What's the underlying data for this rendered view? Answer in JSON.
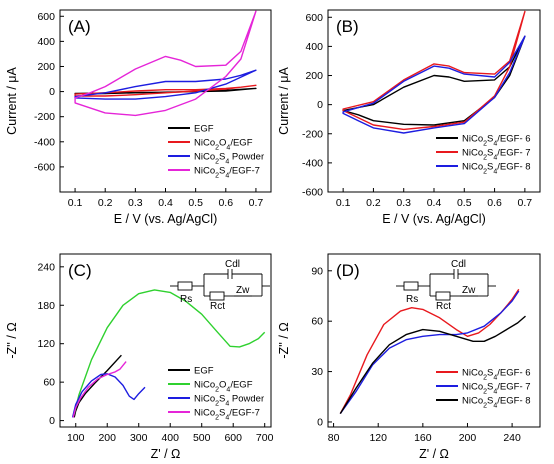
{
  "chart_data": [
    {
      "panel": "(A)",
      "type": "line",
      "xlabel": "E / V (vs. Ag/AgCl)",
      "ylabel": "Current / μA",
      "xlim": [
        0.05,
        0.75
      ],
      "ylim": [
        -800,
        650
      ],
      "xticks": [
        0.1,
        0.2,
        0.3,
        0.4,
        0.5,
        0.6,
        0.7
      ],
      "yticks": [
        -600,
        -400,
        -200,
        0,
        200,
        400,
        600
      ],
      "legend_position": "bottom-right",
      "series": [
        {
          "name": "EGF",
          "color": "#000000",
          "anodic": [
            [
              0.1,
              -15
            ],
            [
              0.2,
              -12
            ],
            [
              0.3,
              -8
            ],
            [
              0.4,
              -5
            ],
            [
              0.5,
              0
            ],
            [
              0.6,
              5
            ],
            [
              0.65,
              15
            ],
            [
              0.7,
              25
            ]
          ],
          "cathodic": [
            [
              0.7,
              25
            ],
            [
              0.6,
              10
            ],
            [
              0.5,
              0
            ],
            [
              0.4,
              -5
            ],
            [
              0.3,
              -10
            ],
            [
              0.2,
              -15
            ],
            [
              0.1,
              -18
            ]
          ]
        },
        {
          "name": "NiCo2O4/EGF",
          "color": "#e8191e",
          "anodic": [
            [
              0.1,
              -20
            ],
            [
              0.2,
              -10
            ],
            [
              0.3,
              5
            ],
            [
              0.4,
              15
            ],
            [
              0.5,
              15
            ],
            [
              0.6,
              25
            ],
            [
              0.65,
              35
            ],
            [
              0.7,
              50
            ]
          ],
          "cathodic": [
            [
              0.7,
              50
            ],
            [
              0.6,
              20
            ],
            [
              0.5,
              5
            ],
            [
              0.4,
              -10
            ],
            [
              0.3,
              -25
            ],
            [
              0.2,
              -35
            ],
            [
              0.1,
              -35
            ]
          ]
        },
        {
          "name": "NiCo2S4 Powder",
          "color": "#1d1de0",
          "anodic": [
            [
              0.1,
              -40
            ],
            [
              0.2,
              -10
            ],
            [
              0.3,
              40
            ],
            [
              0.4,
              80
            ],
            [
              0.5,
              80
            ],
            [
              0.6,
              100
            ],
            [
              0.65,
              130
            ],
            [
              0.7,
              170
            ]
          ],
          "cathodic": [
            [
              0.7,
              170
            ],
            [
              0.6,
              60
            ],
            [
              0.5,
              -10
            ],
            [
              0.4,
              -40
            ],
            [
              0.3,
              -60
            ],
            [
              0.2,
              -60
            ],
            [
              0.1,
              -50
            ]
          ]
        },
        {
          "name": "NiCo2S4/EGF-7",
          "color": "#e525d8",
          "anodic": [
            [
              0.1,
              -50
            ],
            [
              0.15,
              -10
            ],
            [
              0.2,
              40
            ],
            [
              0.3,
              180
            ],
            [
              0.4,
              280
            ],
            [
              0.45,
              250
            ],
            [
              0.5,
              200
            ],
            [
              0.6,
              210
            ],
            [
              0.65,
              320
            ],
            [
              0.7,
              640
            ]
          ],
          "cathodic": [
            [
              0.7,
              640
            ],
            [
              0.65,
              260
            ],
            [
              0.6,
              120
            ],
            [
              0.5,
              -60
            ],
            [
              0.4,
              -150
            ],
            [
              0.3,
              -190
            ],
            [
              0.2,
              -170
            ],
            [
              0.15,
              -130
            ],
            [
              0.1,
              -90
            ]
          ]
        }
      ]
    },
    {
      "panel": "(B)",
      "type": "line",
      "xlabel": "E / V (vs. Ag/AgCl)",
      "ylabel": "Current / μA",
      "xlim": [
        0.05,
        0.75
      ],
      "ylim": [
        -600,
        650
      ],
      "xticks": [
        0.1,
        0.2,
        0.3,
        0.4,
        0.5,
        0.6,
        0.7
      ],
      "yticks": [
        -600,
        -400,
        -200,
        0,
        200,
        400,
        600
      ],
      "legend_position": "bottom-right",
      "series": [
        {
          "name": "NiCo2S4/EGF- 6",
          "color": "#000000",
          "anodic": [
            [
              0.1,
              -40
            ],
            [
              0.2,
              0
            ],
            [
              0.3,
              120
            ],
            [
              0.4,
              200
            ],
            [
              0.45,
              190
            ],
            [
              0.5,
              160
            ],
            [
              0.6,
              170
            ],
            [
              0.65,
              260
            ],
            [
              0.7,
              470
            ]
          ],
          "cathodic": [
            [
              0.7,
              470
            ],
            [
              0.65,
              200
            ],
            [
              0.6,
              50
            ],
            [
              0.5,
              -110
            ],
            [
              0.4,
              -140
            ],
            [
              0.3,
              -135
            ],
            [
              0.2,
              -110
            ],
            [
              0.15,
              -70
            ],
            [
              0.1,
              -40
            ]
          ]
        },
        {
          "name": "NiCo2S4/EGF- 7",
          "color": "#e8191e",
          "anodic": [
            [
              0.1,
              -30
            ],
            [
              0.2,
              20
            ],
            [
              0.3,
              170
            ],
            [
              0.4,
              280
            ],
            [
              0.45,
              265
            ],
            [
              0.5,
              220
            ],
            [
              0.6,
              210
            ],
            [
              0.65,
              300
            ],
            [
              0.7,
              640
            ]
          ],
          "cathodic": [
            [
              0.7,
              640
            ],
            [
              0.65,
              260
            ],
            [
              0.6,
              60
            ],
            [
              0.5,
              -120
            ],
            [
              0.4,
              -150
            ],
            [
              0.3,
              -170
            ],
            [
              0.2,
              -140
            ],
            [
              0.15,
              -90
            ],
            [
              0.1,
              -40
            ]
          ]
        },
        {
          "name": "NiCo2S4/EGF- 8",
          "color": "#1d1de0",
          "anodic": [
            [
              0.1,
              -50
            ],
            [
              0.2,
              10
            ],
            [
              0.3,
              160
            ],
            [
              0.4,
              265
            ],
            [
              0.45,
              250
            ],
            [
              0.5,
              210
            ],
            [
              0.6,
              190
            ],
            [
              0.65,
              290
            ],
            [
              0.7,
              470
            ]
          ],
          "cathodic": [
            [
              0.7,
              470
            ],
            [
              0.65,
              220
            ],
            [
              0.6,
              50
            ],
            [
              0.5,
              -130
            ],
            [
              0.4,
              -160
            ],
            [
              0.3,
              -195
            ],
            [
              0.2,
              -160
            ],
            [
              0.15,
              -110
            ],
            [
              0.1,
              -60
            ]
          ]
        }
      ]
    },
    {
      "panel": "(C)",
      "type": "line",
      "xlabel": "Z' / Ω",
      "ylabel": "-Z'' / Ω",
      "xlim": [
        50,
        720
      ],
      "ylim": [
        -10,
        260
      ],
      "xticks": [
        100,
        200,
        300,
        400,
        500,
        600,
        700
      ],
      "yticks": [
        0,
        60,
        120,
        180,
        240
      ],
      "legend_position": "bottom-right",
      "circuit": {
        "rs": "Rs",
        "rct": "Rct",
        "cdl": "Cdl",
        "zw": "Zw"
      },
      "series": [
        {
          "name": "EGF",
          "color": "#000000",
          "points": [
            [
              95,
              5
            ],
            [
              100,
              15
            ],
            [
              110,
              28
            ],
            [
              130,
              42
            ],
            [
              160,
              58
            ],
            [
              200,
              78
            ],
            [
              245,
              102
            ]
          ]
        },
        {
          "name": "NiCo2O4/EGF",
          "color": "#2fd12f",
          "points": [
            [
              95,
              10
            ],
            [
              110,
              40
            ],
            [
              150,
              95
            ],
            [
              200,
              145
            ],
            [
              250,
              180
            ],
            [
              300,
              198
            ],
            [
              350,
              204
            ],
            [
              400,
              200
            ],
            [
              450,
              186
            ],
            [
              500,
              166
            ],
            [
              550,
              138
            ],
            [
              590,
              116
            ],
            [
              620,
              115
            ],
            [
              650,
              120
            ],
            [
              680,
              128
            ],
            [
              700,
              138
            ]
          ]
        },
        {
          "name": "NiCo2S4 Powder",
          "color": "#1d1de0",
          "points": [
            [
              90,
              5
            ],
            [
              100,
              25
            ],
            [
              120,
              45
            ],
            [
              150,
              62
            ],
            [
              180,
              72
            ],
            [
              200,
              73
            ],
            [
              225,
              68
            ],
            [
              250,
              55
            ],
            [
              270,
              38
            ],
            [
              285,
              33
            ],
            [
              300,
              42
            ],
            [
              320,
              52
            ]
          ]
        },
        {
          "name": "NiCo2S4/EGF-7",
          "color": "#e525d8",
          "points": [
            [
              92,
              5
            ],
            [
              100,
              20
            ],
            [
              115,
              35
            ],
            [
              140,
              52
            ],
            [
              170,
              65
            ],
            [
              200,
              72
            ],
            [
              225,
              76
            ],
            [
              240,
              80
            ],
            [
              260,
              92
            ]
          ]
        }
      ]
    },
    {
      "panel": "(D)",
      "type": "line",
      "xlabel": "Z' / Ω",
      "ylabel": "-Z'' / Ω",
      "xlim": [
        75,
        265
      ],
      "ylim": [
        -3,
        100
      ],
      "xticks": [
        80,
        120,
        160,
        200,
        240
      ],
      "yticks": [
        0,
        30,
        60,
        90
      ],
      "legend_position": "bottom-right",
      "circuit": {
        "rs": "Rs",
        "rct": "Rct",
        "cdl": "Cdl",
        "zw": "Zw"
      },
      "series": [
        {
          "name": "NiCo2S4/EGF- 6",
          "color": "#e8191e",
          "points": [
            [
              86,
              5
            ],
            [
              95,
              16
            ],
            [
              110,
              40
            ],
            [
              125,
              58
            ],
            [
              140,
              66
            ],
            [
              150,
              68
            ],
            [
              160,
              67
            ],
            [
              175,
              62
            ],
            [
              190,
              55
            ],
            [
              200,
              51
            ],
            [
              210,
              53
            ],
            [
              220,
              58
            ],
            [
              230,
              65
            ],
            [
              240,
              73
            ],
            [
              246,
              79
            ]
          ]
        },
        {
          "name": "NiCo2S4/EGF- 7",
          "color": "#1d1de0",
          "points": [
            [
              86,
              5
            ],
            [
              100,
              18
            ],
            [
              115,
              34
            ],
            [
              130,
              44
            ],
            [
              145,
              49
            ],
            [
              160,
              51
            ],
            [
              175,
              52
            ],
            [
              190,
              52
            ],
            [
              200,
              53
            ],
            [
              215,
              57
            ],
            [
              230,
              65
            ],
            [
              240,
              72
            ],
            [
              246,
              78
            ]
          ]
        },
        {
          "name": "NiCo2S4/EGF- 8",
          "color": "#000000",
          "points": [
            [
              86,
              5
            ],
            [
              100,
              20
            ],
            [
              115,
              35
            ],
            [
              130,
              46
            ],
            [
              145,
              52
            ],
            [
              160,
              55
            ],
            [
              175,
              54
            ],
            [
              190,
              51
            ],
            [
              205,
              48
            ],
            [
              215,
              48
            ],
            [
              225,
              51
            ],
            [
              235,
              55
            ],
            [
              245,
              59
            ],
            [
              252,
              63
            ]
          ]
        }
      ]
    }
  ]
}
